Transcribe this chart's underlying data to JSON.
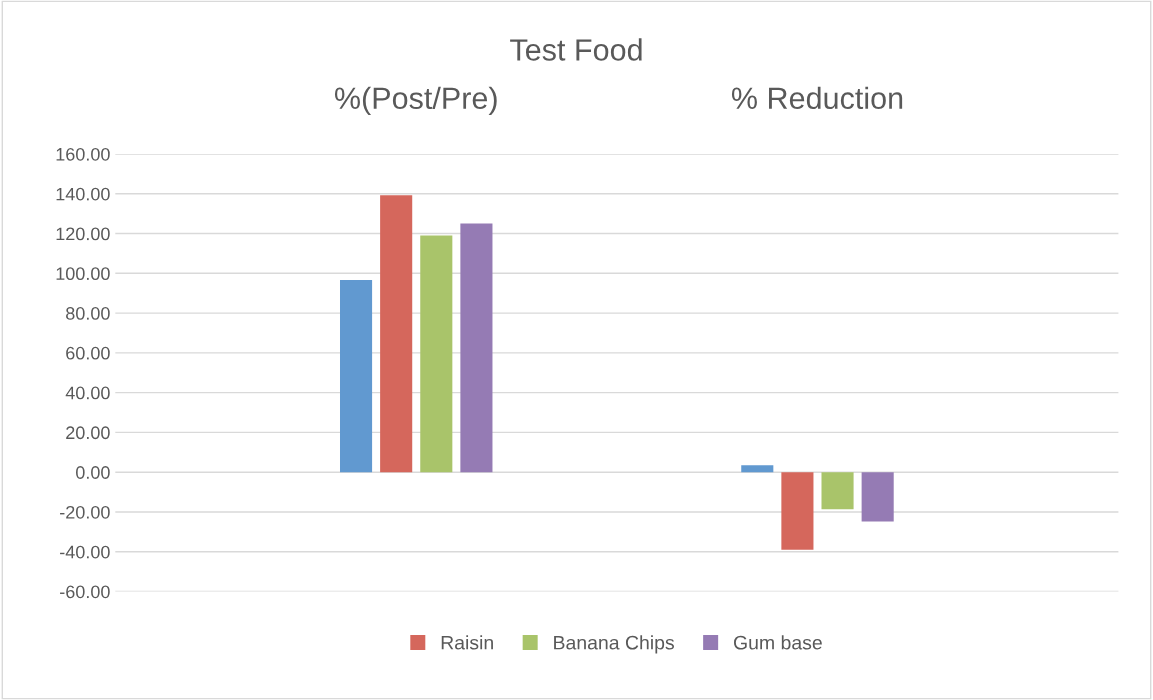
{
  "chart_data": {
    "type": "bar",
    "title": "Test Food",
    "categories": [
      "%(Post/Pre)",
      "% Reduction"
    ],
    "series": [
      {
        "color": "#6199d0",
        "values": [
          96.7,
          3.5
        ]
      },
      {
        "name": "Raisin",
        "color": "#d5675c",
        "values": [
          139.2,
          -39.0
        ]
      },
      {
        "name": "Banana Chips",
        "color": "#a9c46a",
        "values": [
          119.0,
          -18.7
        ]
      },
      {
        "name": "Gum base",
        "color": "#957bb4",
        "values": [
          125.0,
          -24.8
        ]
      }
    ],
    "ylim": [
      -60,
      160
    ],
    "yticks": [
      {
        "value": -60,
        "label": "-60.00"
      },
      {
        "value": -40,
        "label": "-40.00"
      },
      {
        "value": -20,
        "label": "-20.00"
      },
      {
        "value": 0,
        "label": "0.00"
      },
      {
        "value": 20,
        "label": "20.00"
      },
      {
        "value": 40,
        "label": "40.00"
      },
      {
        "value": 60,
        "label": "60.00"
      },
      {
        "value": 80,
        "label": "80.00"
      },
      {
        "value": 100,
        "label": "100.00"
      },
      {
        "value": 120,
        "label": "120.00"
      },
      {
        "value": 140,
        "label": "140.00"
      },
      {
        "value": 160,
        "label": "160.00"
      }
    ],
    "grid": "y",
    "legend": "bottom"
  }
}
